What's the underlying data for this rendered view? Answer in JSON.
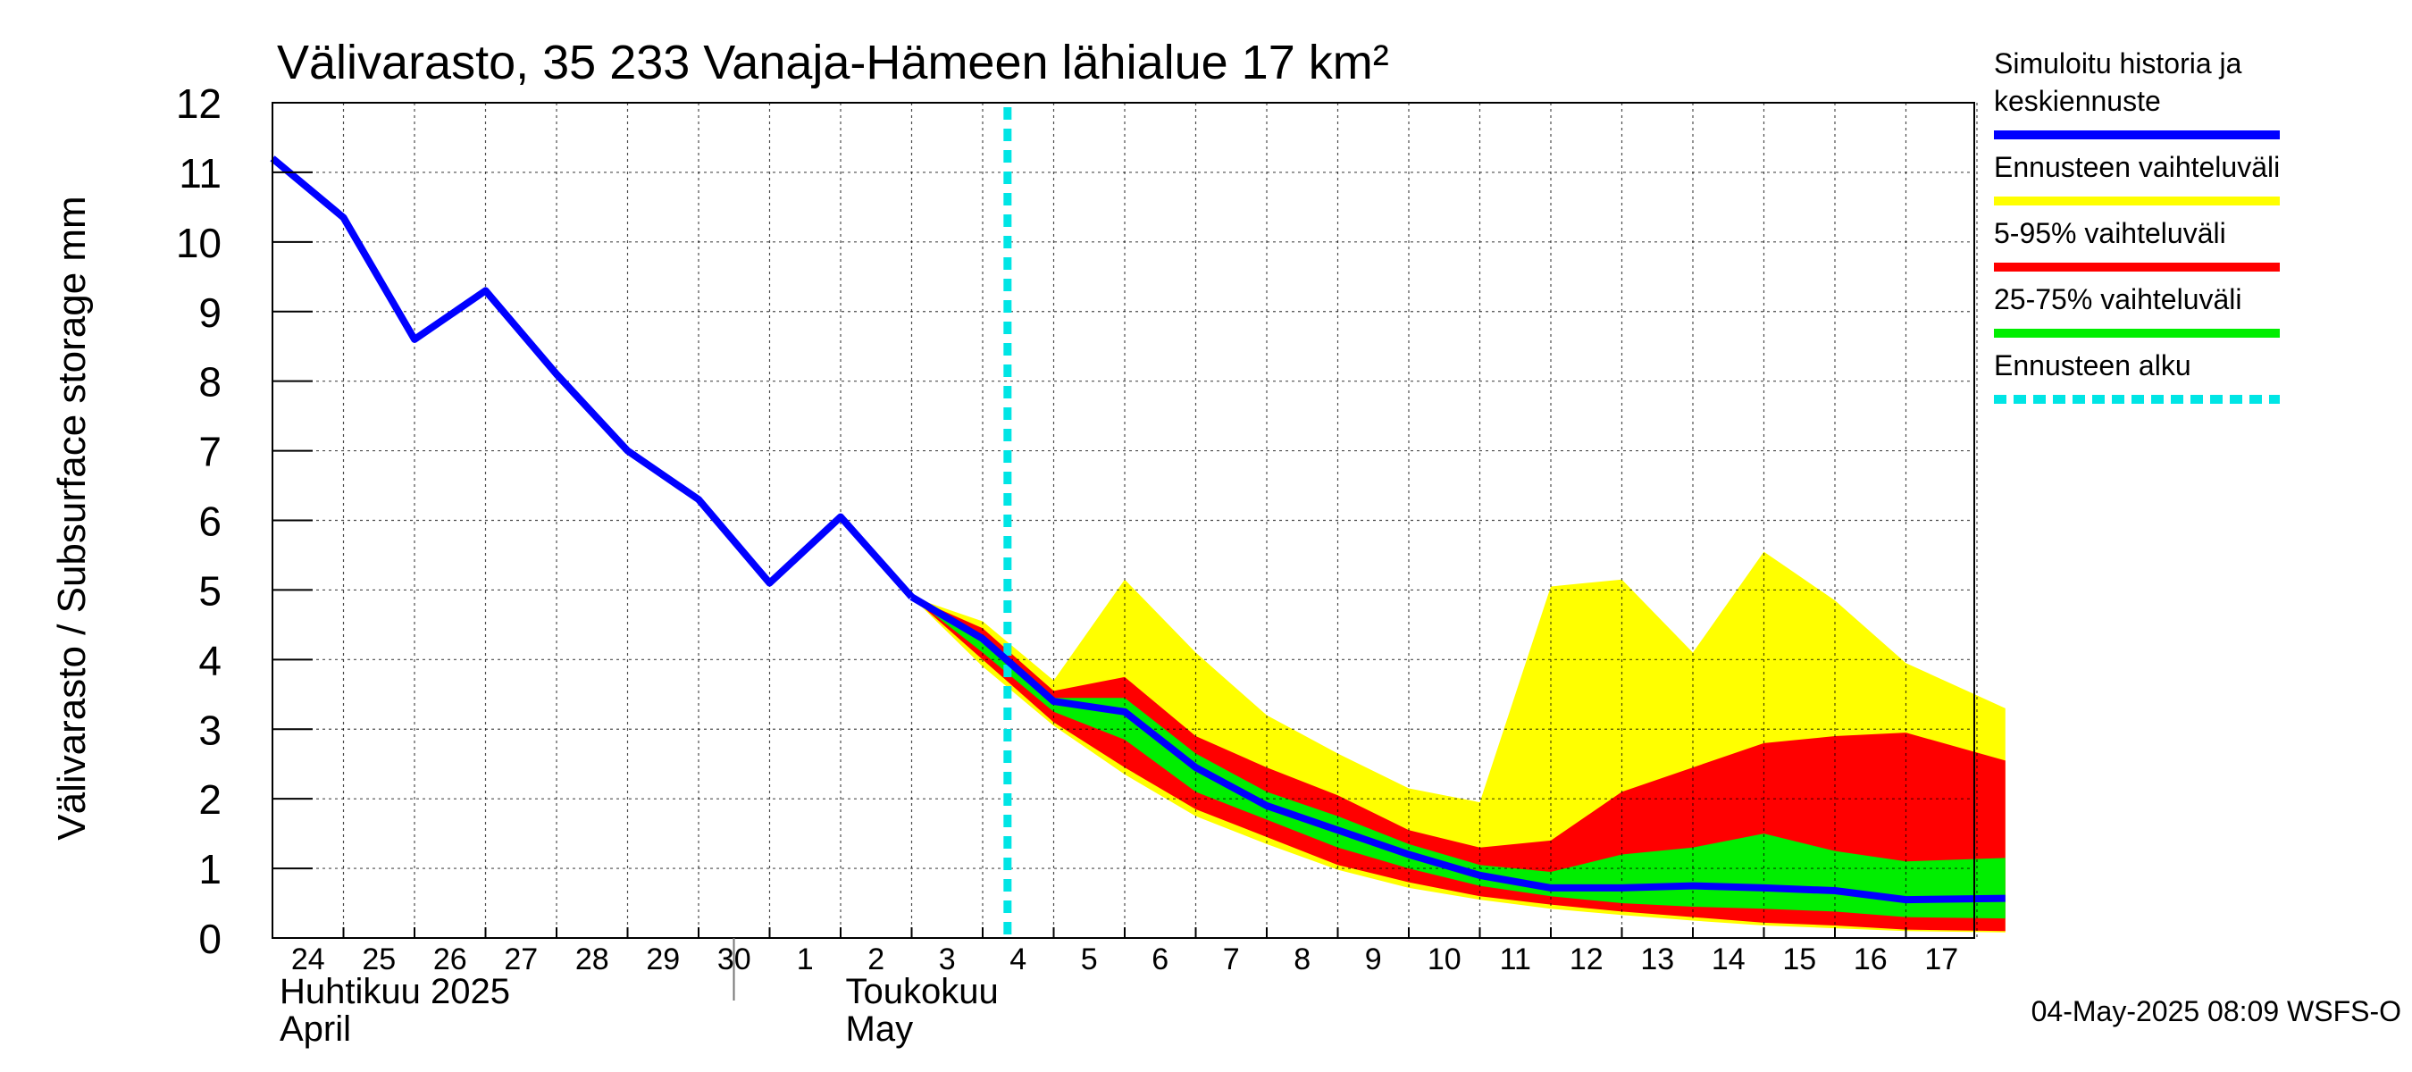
{
  "chart_data": {
    "type": "area",
    "title": "Välivarasto, 35 233 Vanaja-Hämeen lähialue 17 km²",
    "ylabel": "Välivarasto / Subsurface storage  mm",
    "ylim": [
      0,
      12
    ],
    "yticks": [
      "0",
      "1",
      "2",
      "3",
      "4",
      "5",
      "6",
      "7",
      "8",
      "9",
      "10",
      "11",
      "12"
    ],
    "x_start_date": "2025-04-24",
    "xlim_days": [
      0,
      24.4
    ],
    "x_ticks": [
      "24",
      "25",
      "26",
      "27",
      "28",
      "29",
      "30",
      "1",
      "2",
      "3",
      "4",
      "5",
      "6",
      "7",
      "8",
      "9",
      "10",
      "11",
      "12",
      "13",
      "14",
      "15",
      "16",
      "17"
    ],
    "month_labels": [
      {
        "line1": "Huhtikuu  2025",
        "line2": "April"
      },
      {
        "line1": "Toukokuu",
        "line2": "May"
      }
    ],
    "month_divider_day": 7,
    "forecast_start_day": 10.35,
    "grid": true,
    "history": {
      "name": "Simuloitu historia ja keskiennuste",
      "color": "#0000ff",
      "days": [
        0,
        1,
        2,
        3,
        4,
        5,
        6,
        7,
        8,
        9
      ],
      "values": [
        11.2,
        10.35,
        8.6,
        9.3,
        8.1,
        7.0,
        6.3,
        5.1,
        6.05,
        4.9
      ]
    },
    "forecast_days": [
      9,
      10,
      11,
      12,
      13,
      14,
      15,
      16,
      17,
      18,
      19,
      20,
      21,
      22,
      23,
      24.4
    ],
    "median": [
      4.9,
      4.3,
      3.4,
      3.25,
      2.45,
      1.9,
      1.55,
      1.2,
      0.9,
      0.72,
      0.72,
      0.75,
      0.72,
      0.68,
      0.55,
      0.57
    ],
    "bands": [
      {
        "name": "Ennusteen vaihteluväli",
        "color": "#ffff00",
        "lower": [
          4.9,
          3.9,
          3.05,
          2.35,
          1.75,
          1.35,
          0.98,
          0.72,
          0.55,
          0.42,
          0.33,
          0.25,
          0.18,
          0.14,
          0.1,
          0.08
        ],
        "upper": [
          4.9,
          4.55,
          3.7,
          5.15,
          4.1,
          3.2,
          2.65,
          2.15,
          1.95,
          5.05,
          5.15,
          4.1,
          5.55,
          4.85,
          3.95,
          3.3
        ]
      },
      {
        "name": "5-95% vaihteluväli",
        "color": "#ff0000",
        "lower": [
          4.9,
          4.0,
          3.1,
          2.45,
          1.85,
          1.45,
          1.05,
          0.8,
          0.6,
          0.48,
          0.38,
          0.3,
          0.22,
          0.18,
          0.12,
          0.1
        ],
        "upper": [
          4.9,
          4.45,
          3.55,
          3.75,
          2.9,
          2.45,
          2.05,
          1.55,
          1.3,
          1.4,
          2.1,
          2.45,
          2.8,
          2.9,
          2.95,
          2.55
        ]
      },
      {
        "name": "25-75% vaihteluväli",
        "color": "#00ee00",
        "lower": [
          4.9,
          4.1,
          3.25,
          2.85,
          2.1,
          1.7,
          1.3,
          1.0,
          0.75,
          0.6,
          0.5,
          0.45,
          0.42,
          0.38,
          0.3,
          0.28
        ],
        "upper": [
          4.9,
          4.3,
          3.45,
          3.45,
          2.65,
          2.1,
          1.75,
          1.35,
          1.05,
          0.95,
          1.2,
          1.3,
          1.5,
          1.25,
          1.1,
          1.15
        ]
      }
    ],
    "forecast_start_legend": {
      "name": "Ennusteen alku",
      "color": "#00e5e5"
    },
    "timestamp": "04-May-2025 08:09 WSFS-O"
  }
}
